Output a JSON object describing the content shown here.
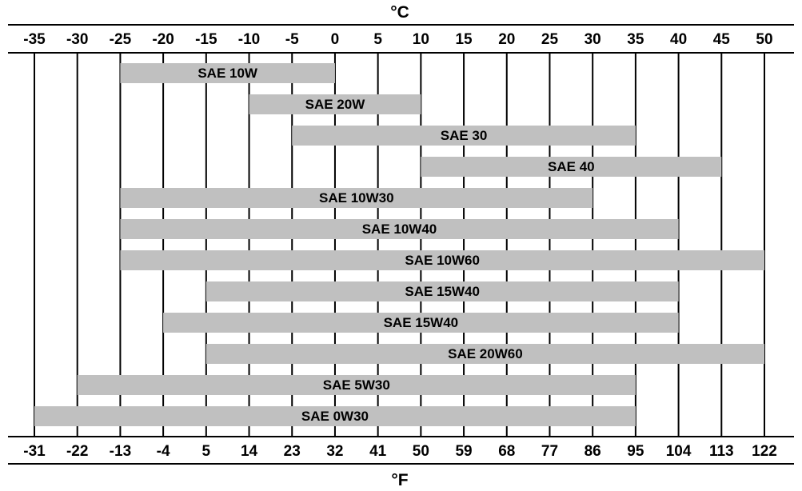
{
  "chart_data": {
    "type": "bar",
    "orientation": "horizontal-range",
    "title": "",
    "top_axis": {
      "unit_label": "°C",
      "ticks": [
        -35,
        -30,
        -25,
        -20,
        -15,
        -10,
        -5,
        0,
        5,
        10,
        15,
        20,
        25,
        30,
        35,
        40,
        45,
        50
      ],
      "tick_labels": [
        "-35",
        "-30",
        "-25",
        "-20",
        "-15",
        "-10",
        "-5",
        "0",
        "5",
        "10",
        "15",
        "20",
        "25",
        "30",
        "35",
        "40",
        "45",
        "50"
      ]
    },
    "bottom_axis": {
      "unit_label": "°F",
      "tick_labels": [
        "-31",
        "-22",
        "-13",
        "-4",
        "5",
        "14",
        "23",
        "32",
        "41",
        "50",
        "59",
        "68",
        "77",
        "86",
        "95",
        "104",
        "113",
        "122"
      ]
    },
    "xlim": [
      -35,
      50
    ],
    "grid": "vertical lines at every tick",
    "bar_color": "#c0c0c0",
    "bars": [
      {
        "label": "SAE 10W",
        "start": -25,
        "end": 0
      },
      {
        "label": "SAE 20W",
        "start": -10,
        "end": 10
      },
      {
        "label": "SAE 30",
        "start": -5,
        "end": 35
      },
      {
        "label": "SAE 40",
        "start": 10,
        "end": 45
      },
      {
        "label": "SAE 10W30",
        "start": -25,
        "end": 30
      },
      {
        "label": "SAE 10W40",
        "start": -25,
        "end": 40
      },
      {
        "label": "SAE 10W60",
        "start": -25,
        "end": 50
      },
      {
        "label": "SAE 15W40",
        "start": -15,
        "end": 40
      },
      {
        "label": "SAE 15W40",
        "start": -20,
        "end": 40
      },
      {
        "label": "SAE 20W60",
        "start": -15,
        "end": 50
      },
      {
        "label": "SAE 5W30",
        "start": -30,
        "end": 35
      },
      {
        "label": "SAE 0W30",
        "start": -35,
        "end": 35
      }
    ]
  }
}
